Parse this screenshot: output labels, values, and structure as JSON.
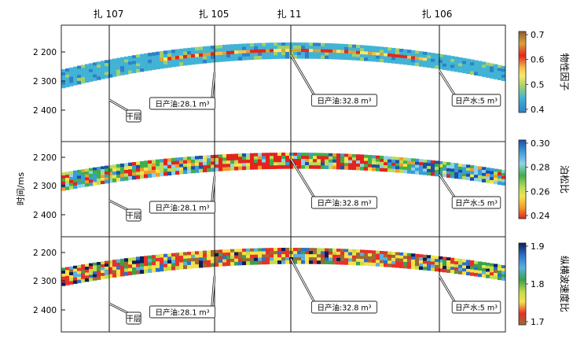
{
  "wells": [
    "扎 107",
    "扎 105",
    "扎 11",
    "扎 106"
  ],
  "y_axis_label": "时间/ms",
  "y_ticks": [
    "2 200",
    "2 300",
    "2 400"
  ],
  "annotations": {
    "dry": "干层",
    "oil1": "日产油:28.1 m³",
    "oil2": "日产油:32.8 m³",
    "water": "日产水:5 m³"
  },
  "panels": [
    {
      "name": "物性因子",
      "colorbar_ticks": [
        "0.7",
        "0.6",
        "0.5",
        "0.4"
      ],
      "colormap": [
        "#8b5e2a",
        "#d9a13a",
        "#e8251b",
        "#f3c24a",
        "#f7e96a",
        "#9fd06a",
        "#42b3d5",
        "#2f80c8"
      ]
    },
    {
      "name": "泊松比",
      "colorbar_ticks": [
        "0.30",
        "0.28",
        "0.26",
        "0.24"
      ],
      "colormap": [
        "#1d4fa8",
        "#3b9dd8",
        "#8fd2e8",
        "#3fb049",
        "#b8dc5a",
        "#f4e34c",
        "#f39b2c",
        "#e3231d"
      ]
    },
    {
      "name": "纵横波速度比",
      "colorbar_ticks": [
        "1.9",
        "1.8",
        "1.7"
      ],
      "colormap": [
        "#0c1d5c",
        "#2e6fc9",
        "#5bb0e0",
        "#3aa24a",
        "#c4dc48",
        "#f4e24a",
        "#e8302a",
        "#9b6b33"
      ]
    }
  ]
}
